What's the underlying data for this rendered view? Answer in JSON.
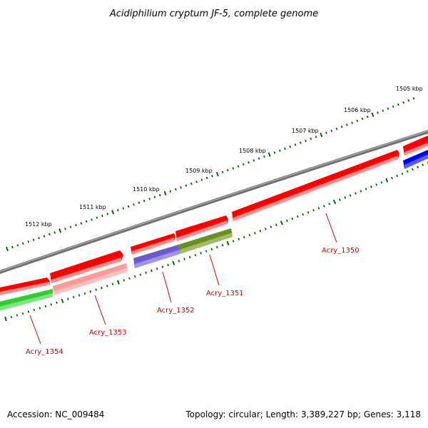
{
  "title": "Acidiphilium cryptum JF-5, complete genome",
  "footer": {
    "accession": "Accession: NC_009484",
    "topology": "Topology: circular; Length: 3,389,227 bp; Genes: 3,118"
  },
  "kbp_labels": [
    "1505 kbp",
    "1506 kbp",
    "1507 kbp",
    "1508 kbp",
    "1509 kbp",
    "1510 kbp",
    "1511 kbp",
    "1512 kbp"
  ],
  "gene_labels": [
    "Acry_1350",
    "Acry_1351",
    "Acry_1352",
    "Acry_1353",
    "Acry_1354"
  ],
  "colors": {
    "backbone": "#808080",
    "forward_gene": "#ff0000",
    "tick": "#006600",
    "label": "#cc0000",
    "gene_1350": "#ff6666",
    "gene_1351": "#6b8e23",
    "gene_1352": "#6a5acd",
    "gene_1353": "#ff9999",
    "gene_1354": "#33cc33",
    "gene_right": "#0000ff"
  }
}
